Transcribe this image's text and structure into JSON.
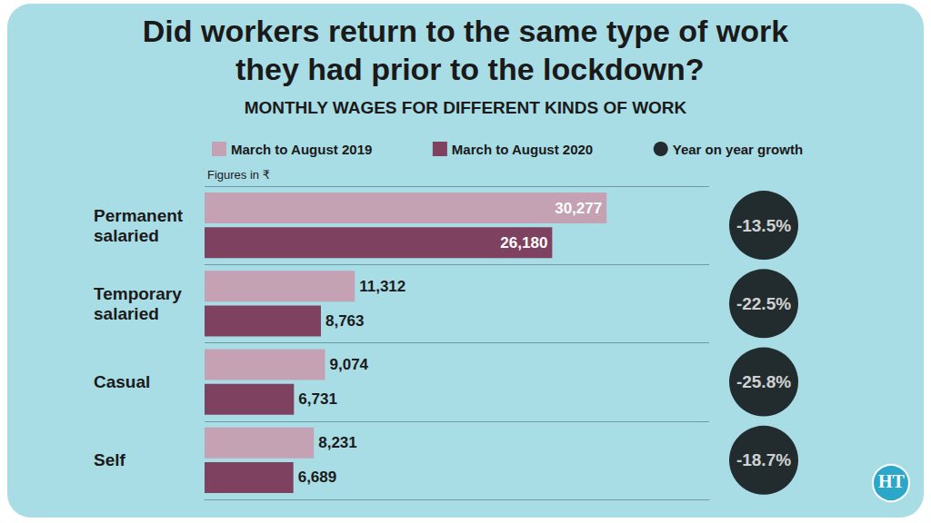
{
  "chart_data": {
    "type": "bar",
    "title": "Did workers return to the same type of work they had prior to the lockdown?",
    "subtitle": "MONTHLY WAGES FOR DIFFERENT KINDS OF WORK",
    "annotation": "Figures in ₹",
    "logo": "HT",
    "orientation": "horizontal",
    "data_labels": true,
    "tick_labels": "y",
    "grid": false,
    "legend": "top-left",
    "categories": [
      "Permanent salaried",
      "Temporary salaried",
      "Casual",
      "Self"
    ],
    "xlim": [
      0,
      38000
    ],
    "series": [
      {
        "name": "March to August 2019",
        "color": "#c4a1b3",
        "values": [
          30277,
          11312,
          9074,
          8231
        ],
        "value_labels": [
          "30,277",
          "11,312",
          "9,074",
          "8,231"
        ]
      },
      {
        "name": "March to August 2020",
        "color": "#7e4260",
        "values": [
          26180,
          8763,
          6731,
          6689
        ],
        "value_labels": [
          "26,180",
          "8,763",
          "6,731",
          "6,689"
        ]
      }
    ],
    "growth": {
      "name": "Year on year growth",
      "color": "#000000",
      "marker": "circle",
      "values": [
        -13.5,
        -22.5,
        -25.8,
        -18.7
      ],
      "value_labels": [
        "-13.5%",
        "-22.5%",
        "-25.8%",
        "-18.7%"
      ]
    }
  }
}
